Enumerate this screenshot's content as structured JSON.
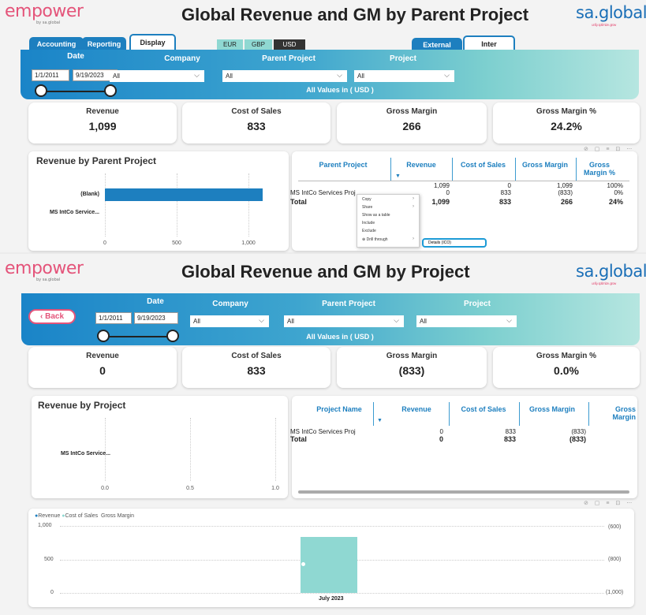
{
  "top": {
    "logo_left": "empower",
    "logo_left_sub": "by sa.global",
    "logo_right": "sa.global",
    "logo_right_sub": "unify. optimize. grow",
    "title": "Global Revenue and GM by Parent Project",
    "tabs": {
      "accounting": "Accounting",
      "reporting": "Reporting",
      "display": "Display"
    },
    "currencies": [
      "EUR",
      "GBP",
      "USD"
    ],
    "mode_tabs": {
      "external": "External",
      "intercompany": "Inter Company"
    },
    "filters": {
      "date_label": "Date",
      "date_from": "1/1/2011",
      "date_to": "9/19/2023",
      "company_label": "Company",
      "company_value": "All",
      "parent_label": "Parent Project",
      "parent_value": "All",
      "project_label": "Project",
      "project_value": "All"
    },
    "all_values": "All Values in ( USD )",
    "kpis": [
      {
        "label": "Revenue",
        "value": "1,099"
      },
      {
        "label": "Cost of Sales",
        "value": "833"
      },
      {
        "label": "Gross Margin",
        "value": "266"
      },
      {
        "label": "Gross Margin %",
        "value": "24.2%"
      }
    ],
    "chart": {
      "title": "Revenue by Parent Project",
      "bars": [
        {
          "label": "(Blank)",
          "value": 1099
        },
        {
          "label": "MS IntCo Service...",
          "value": 0
        }
      ],
      "ticks": [
        "0",
        "500",
        "1,000"
      ]
    },
    "chart_data": {
      "type": "bar",
      "title": "Revenue by Parent Project",
      "categories": [
        "(Blank)",
        "MS IntCo Service..."
      ],
      "values": [
        1099,
        0
      ],
      "xlim": [
        0,
        1099
      ],
      "ticks": [
        0,
        500,
        1000
      ]
    },
    "table": {
      "headers": [
        "Parent Project",
        "Revenue",
        "Cost of Sales",
        "Gross Margin",
        "Gross Margin %"
      ],
      "rows": [
        {
          "name": "",
          "revenue": "1,099",
          "cos": "0",
          "gm": "1,099",
          "gmp": "100%"
        },
        {
          "name": "MS IntCo Services Proj",
          "revenue": "0",
          "cos": "833",
          "gm": "(833)",
          "gmp": "0%"
        }
      ],
      "total": {
        "name": "Total",
        "revenue": "1,099",
        "cos": "833",
        "gm": "266",
        "gmp": "24%"
      }
    },
    "context_menu": [
      "Copy",
      "Share",
      "Show as a table",
      "Include",
      "Exclude",
      "Drill through"
    ],
    "drill_target": "Details (ICO)"
  },
  "bottom": {
    "logo_left": "empower",
    "logo_left_sub": "by sa.global",
    "logo_right": "sa.global",
    "logo_right_sub": "unify. optimize. grow",
    "title": "Global Revenue and GM by Project",
    "back_label": "Back",
    "filters": {
      "date_label": "Date",
      "date_from": "1/1/2011",
      "date_to": "9/19/2023",
      "company_label": "Company",
      "company_value": "All",
      "parent_label": "Parent Project",
      "parent_value": "All",
      "project_label": "Project",
      "project_value": "All"
    },
    "all_values": "All Values in ( USD )",
    "kpis": [
      {
        "label": "Revenue",
        "value": "0"
      },
      {
        "label": "Cost of Sales",
        "value": "833"
      },
      {
        "label": "Gross Margin",
        "value": "(833)"
      },
      {
        "label": "Gross Margin %",
        "value": "0.0%"
      }
    ],
    "chart": {
      "title": "Revenue by Project",
      "bars": [
        {
          "label": "MS IntCo Service...",
          "value": 0
        }
      ],
      "ticks": [
        "0.0",
        "0.5",
        "1.0"
      ]
    },
    "chart_data": [
      {
        "type": "bar",
        "title": "Revenue by Project",
        "categories": [
          "MS IntCo Service..."
        ],
        "values": [
          0
        ],
        "xlim": [
          0,
          1
        ],
        "ticks": [
          0,
          0.5,
          1.0
        ]
      },
      {
        "type": "bar",
        "categories": [
          "July 2023"
        ],
        "series": [
          {
            "name": "Revenue",
            "values": [
              0
            ],
            "color": "#1d7fbf"
          },
          {
            "name": "Cost of Sales",
            "values": [
              833
            ],
            "color": "#8fd8d2"
          },
          {
            "name": "Gross Margin",
            "values": [
              -833
            ],
            "color": "#666666"
          }
        ],
        "y_left_ticks": [
          "1,000",
          "500",
          "0"
        ],
        "y_right_ticks": [
          "(600)",
          "(800)",
          "(1,000)"
        ],
        "ylim_left": [
          0,
          1000
        ],
        "ylim_right": [
          -1000,
          -600
        ],
        "legend": "top-left"
      }
    ],
    "table": {
      "headers": [
        "Project Name",
        "Revenue",
        "Cost of Sales",
        "Gross Margin",
        "Gross Margin"
      ],
      "rows": [
        {
          "name": "MS IntCo Services Proj",
          "revenue": "0",
          "cos": "833",
          "gm": "(833)"
        }
      ],
      "total": {
        "name": "Total",
        "revenue": "0",
        "cos": "833",
        "gm": "(833)"
      }
    },
    "combo": {
      "legend": [
        "Revenue",
        "Cost of Sales",
        "Gross Margin"
      ],
      "y_left": [
        "1,000",
        "500",
        "0"
      ],
      "y_right": [
        "(600)",
        "(800)",
        "(1,000)"
      ],
      "x_label": "July 2023"
    }
  },
  "colors": {
    "accent": "#1d7fbf",
    "teal": "#8fd8d2",
    "brand_pink": "#e4547a"
  }
}
